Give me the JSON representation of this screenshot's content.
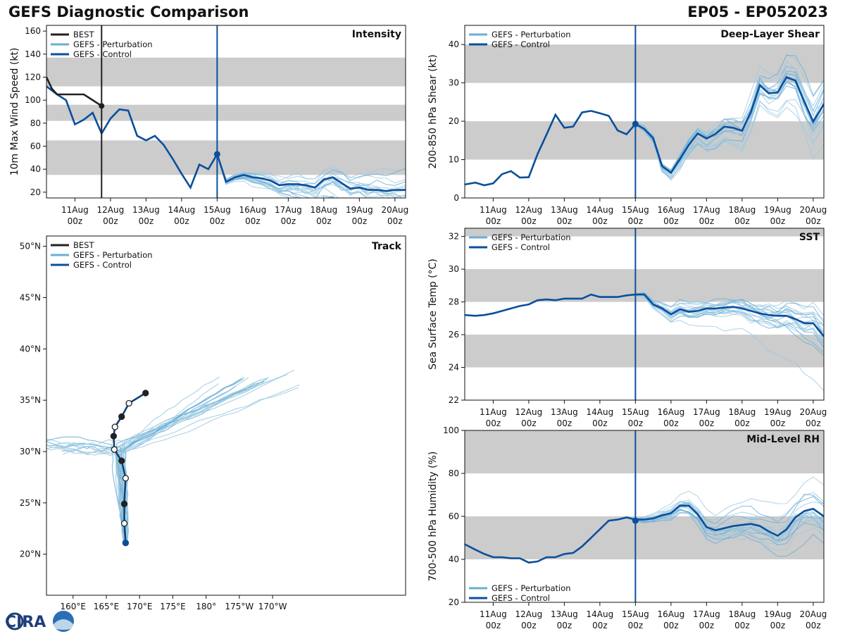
{
  "header": {
    "title": "GEFS Diagnostic Comparison",
    "storm": "EP05 - EP052023"
  },
  "logo": {
    "text": "CIRA"
  },
  "colors": {
    "best": "#222222",
    "perturbation": "#6aaed6",
    "control": "#0b4f9c",
    "band": "#cccccc",
    "member": "#9ecae1"
  },
  "time_axis": {
    "labels": [
      "11Aug\n00z",
      "12Aug\n00z",
      "13Aug\n00z",
      "14Aug\n00z",
      "15Aug\n00z",
      "16Aug\n00z",
      "17Aug\n00z",
      "18Aug\n00z",
      "19Aug\n00z",
      "20Aug\n00z"
    ],
    "start": 10.2,
    "end": 20.3,
    "now": 15.0
  },
  "chart_data": [
    {
      "id": "intensity",
      "type": "line",
      "title": "Intensity",
      "ylabel": "10m Max Wind Speed (kt)",
      "ylim": [
        15,
        165
      ],
      "yticks": [
        20,
        40,
        60,
        80,
        100,
        120,
        140,
        160
      ],
      "bands": [
        [
          35,
          65
        ],
        [
          82,
          96
        ],
        [
          112,
          137
        ]
      ],
      "legend": [
        "BEST",
        "GEFS - Perturbation",
        "GEFS - Control"
      ],
      "best": {
        "x": [
          10.2,
          10.35,
          10.5,
          11.25,
          11.75
        ],
        "y": [
          120,
          110,
          105,
          105,
          95
        ]
      },
      "control": {
        "x": [
          10.2,
          10.5,
          10.75,
          11.0,
          11.25,
          11.5,
          11.75,
          12.0,
          12.25,
          12.5,
          12.75,
          13.0,
          13.25,
          13.5,
          13.75,
          14.0,
          14.25,
          14.5,
          14.75,
          15.0,
          15.25,
          15.5,
          15.75,
          16.0,
          16.25,
          16.5,
          16.75,
          17.0,
          17.25,
          17.5,
          17.75,
          18.0,
          18.25,
          18.5,
          18.75,
          19.0,
          19.25,
          19.5,
          19.75,
          20.0,
          20.3
        ],
        "y": [
          112,
          105,
          100,
          79,
          83,
          89,
          71,
          84,
          92,
          91,
          69,
          65,
          69,
          61,
          49,
          36,
          24,
          44,
          40,
          53,
          29,
          33,
          35,
          33,
          32,
          30,
          26,
          27,
          27,
          26,
          24,
          31,
          33,
          28,
          23,
          24,
          22,
          22,
          21,
          22,
          22
        ]
      },
      "now_value": 53
    },
    {
      "id": "shear",
      "type": "line",
      "title": "Deep-Layer Shear",
      "ylabel": "200-850 hPa Shear (kt)",
      "ylim": [
        0,
        45
      ],
      "yticks": [
        0,
        10,
        20,
        30,
        40
      ],
      "bands": [
        [
          10,
          20
        ],
        [
          30,
          40
        ]
      ],
      "legend": [
        "GEFS - Perturbation",
        "GEFS - Control"
      ],
      "control": {
        "x": [
          10.2,
          10.5,
          10.75,
          11.0,
          11.25,
          11.5,
          11.75,
          12.0,
          12.25,
          12.5,
          12.75,
          13.0,
          13.25,
          13.5,
          13.75,
          14.0,
          14.25,
          14.5,
          14.75,
          15.0,
          15.25,
          15.5,
          15.75,
          16.0,
          16.25,
          16.5,
          16.75,
          17.0,
          17.25,
          17.5,
          17.75,
          18.0,
          18.25,
          18.5,
          18.75,
          19.0,
          19.25,
          19.5,
          19.75,
          20.0,
          20.3
        ],
        "y": [
          3.5,
          4.0,
          3.3,
          3.8,
          6.2,
          7.0,
          5.3,
          5.4,
          11.5,
          16.5,
          21.7,
          18.3,
          18.6,
          22.3,
          22.7,
          22.1,
          21.4,
          17.6,
          16.6,
          19.3,
          18.0,
          15.6,
          8.3,
          6.6,
          10.1,
          13.8,
          16.8,
          15.5,
          16.7,
          18.6,
          18.3,
          17.5,
          22.5,
          29.4,
          27.3,
          27.5,
          31.5,
          30.6,
          25.1,
          19.9,
          24.5
        ]
      },
      "now_value": 19.3
    },
    {
      "id": "track",
      "type": "line",
      "title": "Track",
      "legend": [
        "BEST",
        "GEFS - Perturbation",
        "GEFS - Control"
      ],
      "xlim": [
        156,
        210
      ],
      "ylim": [
        16,
        51
      ],
      "xticks": [
        160,
        165,
        170,
        175,
        180,
        185,
        190,
        195,
        200,
        205,
        210
      ],
      "xtick_labels": [
        "160°E",
        "165°E",
        "170°E",
        "175°E",
        "180°",
        "175°W",
        "170°W"
      ],
      "xtick_positions": [
        160,
        165,
        170,
        175,
        180,
        185,
        190
      ],
      "ytick_labels": [
        "20°N",
        "25°N",
        "30°N",
        "35°N",
        "40°N",
        "45°N",
        "50°N"
      ],
      "ytick_positions": [
        20,
        25,
        30,
        35,
        40,
        45,
        50
      ],
      "best": {
        "lon": [
          167.9,
          167.7,
          167.7,
          167.9,
          167.3,
          166.2,
          166.1,
          166.3,
          167.3,
          168.4,
          170.9
        ],
        "lat": [
          21.1,
          23.0,
          24.9,
          27.4,
          29.1,
          30.2,
          31.5,
          32.4,
          33.4,
          34.7,
          35.7
        ]
      },
      "best_filled": [
        true,
        false,
        true,
        false,
        true,
        false,
        true,
        false,
        true,
        false,
        true
      ],
      "control": {
        "lon": [
          167.9,
          167.7,
          167.7,
          167.9,
          167.3,
          166.2,
          166.1,
          166.3,
          167.3,
          168.4,
          170.9
        ],
        "lat": [
          21.1,
          23.0,
          24.9,
          27.4,
          29.1,
          30.2,
          31.5,
          32.4,
          33.4,
          34.7,
          35.7
        ]
      }
    },
    {
      "id": "sst",
      "type": "line",
      "title": "SST",
      "ylabel": "Sea Surface Temp (°C)",
      "ylim": [
        22,
        32.5
      ],
      "yticks": [
        22,
        24,
        26,
        28,
        30,
        32
      ],
      "bands": [
        [
          24,
          26
        ],
        [
          28,
          30
        ],
        [
          32,
          34
        ]
      ],
      "legend": [
        "GEFS - Perturbation",
        "GEFS - Control"
      ],
      "control": {
        "x": [
          10.2,
          10.5,
          10.75,
          11.0,
          11.25,
          11.5,
          11.75,
          12.0,
          12.25,
          12.5,
          12.75,
          13.0,
          13.25,
          13.5,
          13.75,
          14.0,
          14.25,
          14.5,
          14.75,
          15.0,
          15.25,
          15.5,
          15.75,
          16.0,
          16.25,
          16.5,
          16.75,
          17.0,
          17.25,
          17.5,
          17.75,
          18.0,
          18.25,
          18.5,
          18.75,
          19.0,
          19.25,
          19.5,
          19.75,
          20.0,
          20.3
        ],
        "y": [
          27.2,
          27.15,
          27.2,
          27.3,
          27.45,
          27.6,
          27.75,
          27.85,
          28.1,
          28.15,
          28.1,
          28.2,
          28.2,
          28.2,
          28.45,
          28.3,
          28.3,
          28.3,
          28.4,
          28.45,
          28.45,
          27.85,
          27.6,
          27.25,
          27.55,
          27.4,
          27.45,
          27.6,
          27.6,
          27.65,
          27.7,
          27.6,
          27.45,
          27.3,
          27.2,
          27.15,
          27.15,
          26.95,
          26.7,
          26.7,
          25.9
        ]
      }
    },
    {
      "id": "rh",
      "type": "line",
      "title": "Mid-Level RH",
      "ylabel": "700-500 hPa Humidity (%)",
      "ylim": [
        20,
        100
      ],
      "yticks": [
        20,
        40,
        60,
        80,
        100
      ],
      "bands": [
        [
          40,
          60
        ],
        [
          80,
          100
        ]
      ],
      "legend": [
        "GEFS - Perturbation",
        "GEFS - Control"
      ],
      "control": {
        "x": [
          10.2,
          10.5,
          10.75,
          11.0,
          11.25,
          11.5,
          11.75,
          12.0,
          12.25,
          12.5,
          12.75,
          13.0,
          13.25,
          13.5,
          13.75,
          14.0,
          14.25,
          14.5,
          14.75,
          15.0,
          15.25,
          15.5,
          15.75,
          16.0,
          16.25,
          16.5,
          16.75,
          17.0,
          17.25,
          17.5,
          17.75,
          18.0,
          18.25,
          18.5,
          18.75,
          19.0,
          19.25,
          19.5,
          19.75,
          20.0,
          20.3
        ],
        "y": [
          47,
          44.5,
          42.5,
          41,
          41,
          40.5,
          40.5,
          38.5,
          39,
          41,
          41,
          42.5,
          43,
          46,
          50,
          54,
          58,
          58.5,
          59.5,
          58.5,
          58.5,
          59,
          60.5,
          61.5,
          65,
          65,
          61,
          55,
          53.5,
          54.5,
          55.5,
          56,
          56.5,
          55.5,
          53,
          51,
          54,
          59.5,
          62.5,
          63.5,
          60
        ]
      },
      "now_value": 58
    }
  ]
}
